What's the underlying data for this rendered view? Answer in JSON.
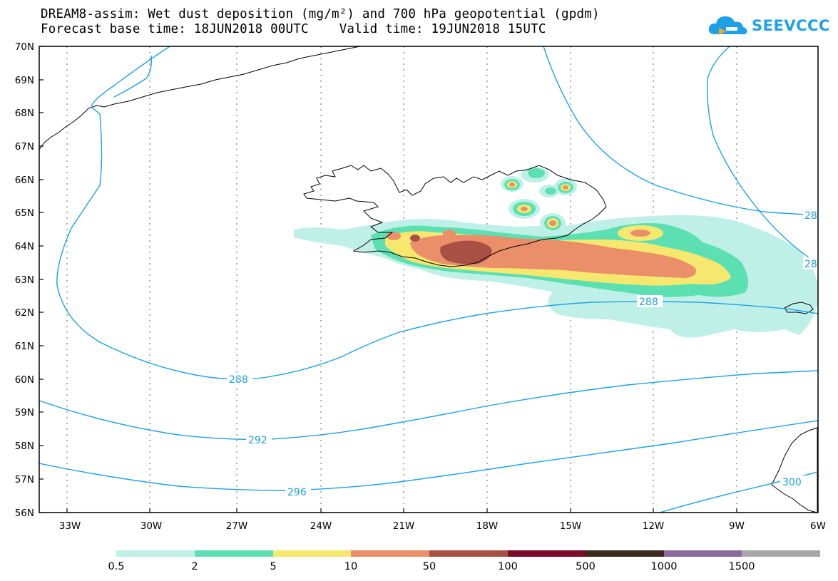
{
  "title_line1": "DREAM8-assim: Wet dust deposition (mg/m²) and 700 hPa geopotential (gpdm)",
  "title_line2": "Forecast base time: 18JUN2018 00UTC    Valid time: 19JUN2018 15UTC",
  "brand": {
    "name": "SEEVCCC",
    "icon": "cloud-logo-icon",
    "color": "#1da1e6"
  },
  "map": {
    "lat_ticks": [
      "70N",
      "69N",
      "68N",
      "67N",
      "66N",
      "65N",
      "64N",
      "63N",
      "62N",
      "61N",
      "60N",
      "59N",
      "58N",
      "57N",
      "56N"
    ],
    "lon_ticks": [
      "33W",
      "30W",
      "27W",
      "24W",
      "21W",
      "18W",
      "15W",
      "12W",
      "9W",
      "6W"
    ],
    "contour_color": "#1da1e6",
    "contour_labels": [
      "288",
      "288",
      "292",
      "296",
      "300",
      "28",
      "28"
    ]
  },
  "colorbar": {
    "colors": [
      "#bff0e8",
      "#5ce0b2",
      "#f6e86e",
      "#ea8f6a",
      "#a85043",
      "#7c0a2a",
      "#3a2a1c",
      "#8d6c9c",
      "#a8a8a8"
    ],
    "labels": [
      "0.5",
      "2",
      "5",
      "10",
      "50",
      "100",
      "500",
      "1000",
      "1500"
    ]
  }
}
